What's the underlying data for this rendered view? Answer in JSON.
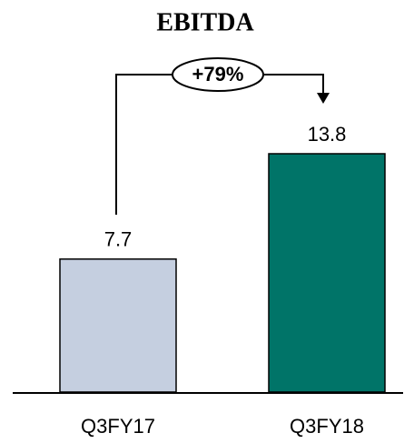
{
  "chart_data": {
    "type": "bar",
    "title": "EBITDA",
    "categories": [
      "Q3FY17",
      "Q3FY18"
    ],
    "values": [
      7.7,
      13.8
    ],
    "colors": [
      "#c5cfe0",
      "#007468"
    ],
    "annotation": "+79%"
  }
}
